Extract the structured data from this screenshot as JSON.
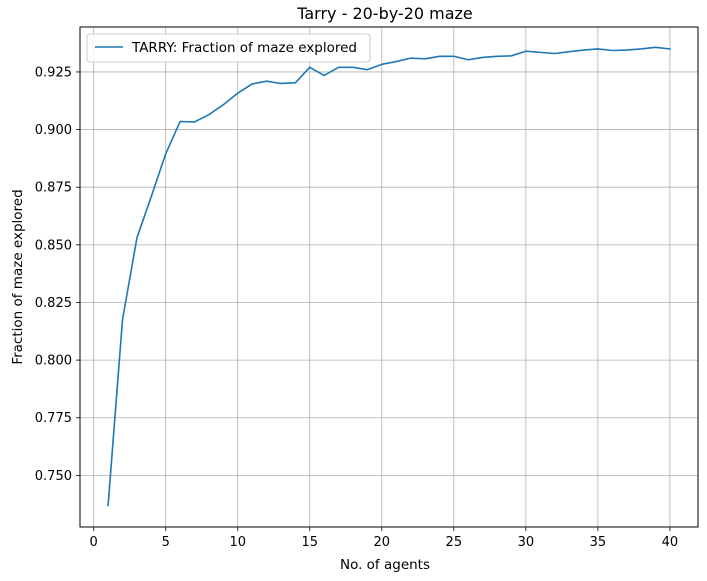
{
  "chart_data": {
    "type": "line",
    "title": "Tarry - 20-by-20 maze",
    "xlabel": "No. of agents",
    "ylabel": "Fraction of maze explored",
    "xlim": [
      -0.95,
      41.95
    ],
    "ylim": [
      0.7276,
      0.9445
    ],
    "xticks": [
      0,
      5,
      10,
      15,
      20,
      25,
      30,
      35,
      40
    ],
    "yticks": [
      0.75,
      0.775,
      0.8,
      0.825,
      0.85,
      0.875,
      0.9,
      0.925
    ],
    "ytick_labels": [
      "0.750",
      "0.775",
      "0.800",
      "0.825",
      "0.850",
      "0.875",
      "0.900",
      "0.925"
    ],
    "grid": true,
    "legend_position": "upper-left",
    "series": [
      {
        "name": "TARRY: Fraction of maze explored",
        "color": "#1f77b4",
        "x": [
          1,
          2,
          3,
          4,
          5,
          6,
          7,
          8,
          9,
          10,
          11,
          12,
          13,
          14,
          15,
          16,
          17,
          18,
          19,
          20,
          21,
          22,
          23,
          24,
          25,
          26,
          27,
          28,
          29,
          30,
          31,
          32,
          33,
          34,
          35,
          36,
          37,
          38,
          39,
          40
        ],
        "y": [
          0.737,
          0.8175,
          0.853,
          0.871,
          0.8895,
          0.9035,
          0.9033,
          0.9065,
          0.9108,
          0.9158,
          0.9198,
          0.921,
          0.92,
          0.9203,
          0.927,
          0.9235,
          0.927,
          0.927,
          0.926,
          0.9283,
          0.9295,
          0.931,
          0.9307,
          0.9318,
          0.9318,
          0.9303,
          0.9313,
          0.9318,
          0.932,
          0.934,
          0.9335,
          0.933,
          0.9338,
          0.9345,
          0.935,
          0.9343,
          0.9345,
          0.935,
          0.9357,
          0.935
        ]
      }
    ]
  }
}
